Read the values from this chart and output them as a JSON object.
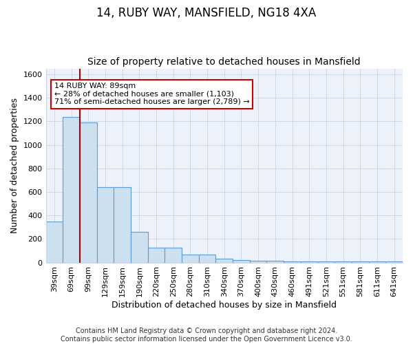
{
  "title": "14, RUBY WAY, MANSFIELD, NG18 4XA",
  "subtitle": "Size of property relative to detached houses in Mansfield",
  "xlabel": "Distribution of detached houses by size in Mansfield",
  "ylabel": "Number of detached properties",
  "categories": [
    "39sqm",
    "69sqm",
    "99sqm",
    "129sqm",
    "159sqm",
    "190sqm",
    "220sqm",
    "250sqm",
    "280sqm",
    "310sqm",
    "340sqm",
    "370sqm",
    "400sqm",
    "430sqm",
    "460sqm",
    "491sqm",
    "521sqm",
    "551sqm",
    "581sqm",
    "611sqm",
    "641sqm"
  ],
  "values": [
    350,
    1235,
    1190,
    640,
    640,
    260,
    125,
    125,
    70,
    70,
    30,
    20,
    15,
    15,
    10,
    10,
    10,
    10,
    10,
    10,
    10
  ],
  "bar_edge_color": "#5b9bd5",
  "bar_fill_color": "#cce0f0",
  "redline_x": 1.5,
  "annotation_text": "14 RUBY WAY: 89sqm\n← 28% of detached houses are smaller (1,103)\n71% of semi-detached houses are larger (2,789) →",
  "annotation_box_color": "#ffffff",
  "annotation_box_edge": "#cc0000",
  "ylim": [
    0,
    1650
  ],
  "yticks": [
    0,
    200,
    400,
    600,
    800,
    1000,
    1200,
    1400,
    1600
  ],
  "grid_color": "#d0d8e8",
  "bg_color": "#edf2fa",
  "footer": "Contains HM Land Registry data © Crown copyright and database right 2024.\nContains public sector information licensed under the Open Government Licence v3.0.",
  "title_fontsize": 12,
  "subtitle_fontsize": 10,
  "footer_fontsize": 7,
  "annotation_fontsize": 8,
  "ylabel_fontsize": 9,
  "xlabel_fontsize": 9,
  "tick_fontsize": 8
}
